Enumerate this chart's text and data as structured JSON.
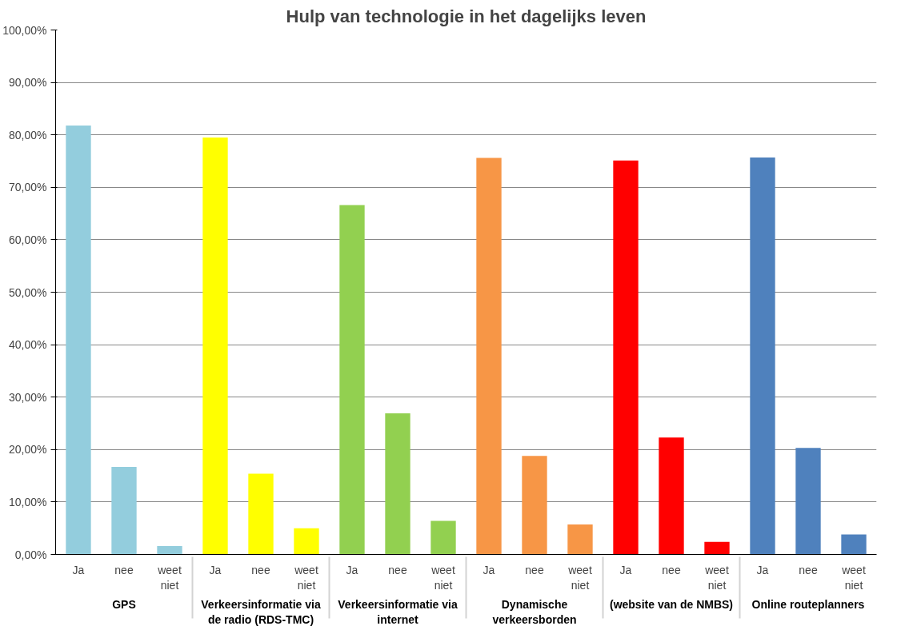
{
  "chart_data": {
    "type": "bar",
    "title": "Hulp van technologie in het dagelijks leven",
    "categories": [
      "GPS",
      "Verkeersinformatie via de radio (RDS-TMC)",
      "Verkeersinformatie via internet",
      "Dynamische verkeersborden",
      "(website van de NMBS)",
      "Online routeplanners"
    ],
    "series": [
      {
        "name": "Ja",
        "values": [
          81.8,
          79.5,
          66.6,
          75.6,
          75.1,
          75.7
        ],
        "colors": [
          "#93cddd",
          "#ffff00",
          "#92d050",
          "#f79646",
          "#ff0000",
          "#4f81bd"
        ]
      },
      {
        "name": "nee",
        "values": [
          16.7,
          15.4,
          26.9,
          18.8,
          22.3,
          20.3
        ],
        "colors": [
          "#93cddd",
          "#ffff00",
          "#92d050",
          "#f79646",
          "#ff0000",
          "#4f81bd"
        ]
      },
      {
        "name": "weet niet",
        "values": [
          1.6,
          5.0,
          6.4,
          5.7,
          2.4,
          3.8
        ],
        "colors": [
          "#93cddd",
          "#ffff00",
          "#92d050",
          "#f79646",
          "#ff0000",
          "#4f81bd"
        ]
      }
    ],
    "ylim": [
      0,
      100
    ],
    "yticks": [
      {
        "value": 0,
        "label": "0,00%"
      },
      {
        "value": 10,
        "label": "10,00%"
      },
      {
        "value": 20,
        "label": "20,00%"
      },
      {
        "value": 30,
        "label": "30,00%"
      },
      {
        "value": 40,
        "label": "40,00%"
      },
      {
        "value": 50,
        "label": "50,00%"
      },
      {
        "value": 60,
        "label": "60,00%"
      },
      {
        "value": 70,
        "label": "70,00%"
      },
      {
        "value": 80,
        "label": "80,00%"
      },
      {
        "value": 90,
        "label": "90,00%"
      },
      {
        "value": 100,
        "label": "100,00%"
      }
    ],
    "grid": "y"
  }
}
